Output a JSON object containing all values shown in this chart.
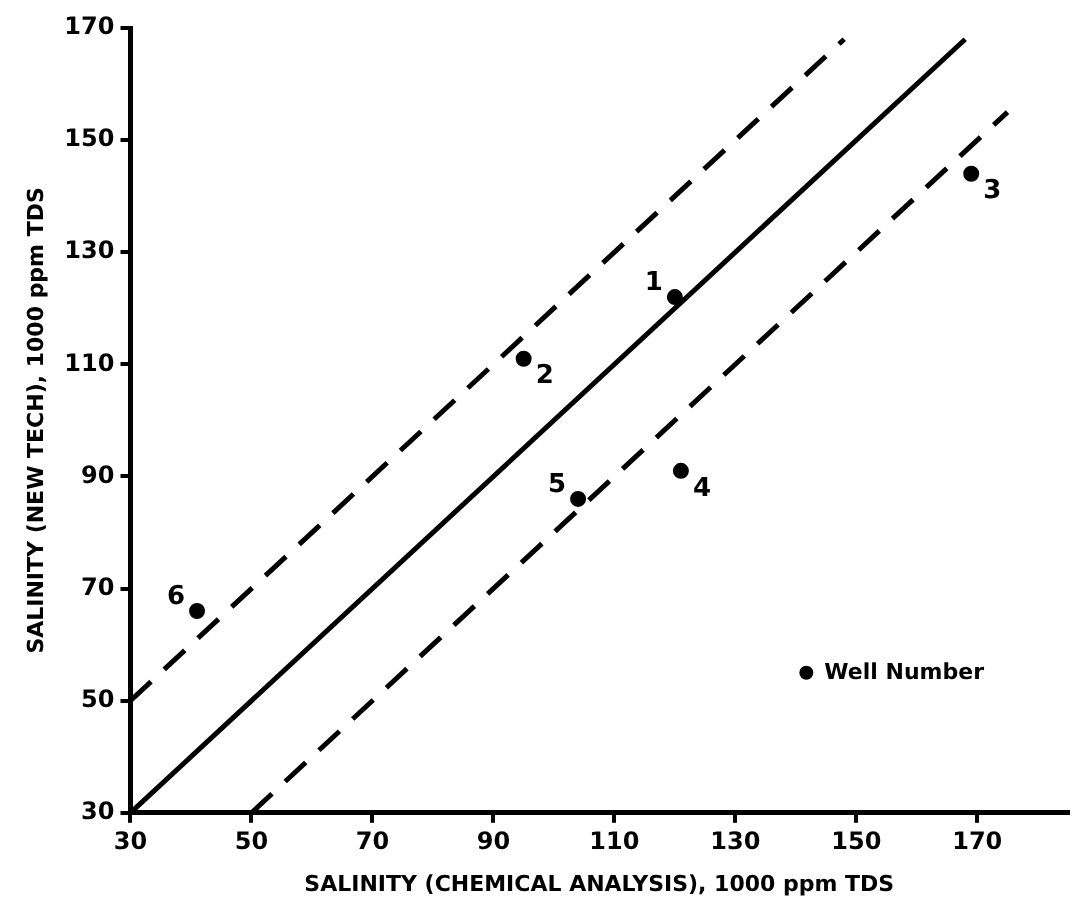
{
  "chart_data": {
    "type": "scatter",
    "xlabel": "SALINITY (CHEMICAL ANALYSIS), 1000 ppm TDS",
    "ylabel": "SALINITY (NEW TECH), 1000 ppm TDS",
    "xlim": [
      30,
      185
    ],
    "ylim": [
      30,
      170
    ],
    "xticks": [
      30,
      50,
      70,
      90,
      110,
      130,
      150,
      170
    ],
    "yticks": [
      30,
      50,
      70,
      90,
      110,
      130,
      150,
      170
    ],
    "grid": false,
    "legend": "bottom right",
    "series": [
      {
        "name": "Well Number",
        "marker": "circle",
        "color": "#000000",
        "x": [
          120,
          95,
          169,
          121,
          104,
          41
        ],
        "values": [
          122,
          111,
          144,
          91,
          86,
          66
        ]
      },
      {
        "type": "line",
        "marker": "none",
        "color": "#000000",
        "line_style": "solid",
        "x": [
          30,
          168
        ],
        "values": [
          30,
          168
        ]
      },
      {
        "type": "line",
        "marker": "none",
        "color": "#000000",
        "line_style": "dashed",
        "x": [
          30,
          148
        ],
        "values": [
          50,
          168
        ]
      },
      {
        "type": "line",
        "marker": "none",
        "color": "#000000",
        "line_style": "dashed",
        "x": [
          50,
          175
        ],
        "values": [
          30,
          155
        ]
      }
    ],
    "annotations": [
      {
        "text": "1",
        "x": 120,
        "y": 122
      },
      {
        "text": "2",
        "x": 95,
        "y": 111
      },
      {
        "text": "3",
        "x": 169,
        "y": 144
      },
      {
        "text": "4",
        "x": 121,
        "y": 91
      },
      {
        "text": "5",
        "x": 104,
        "y": 86
      },
      {
        "text": "6",
        "x": 41,
        "y": 66
      }
    ]
  }
}
